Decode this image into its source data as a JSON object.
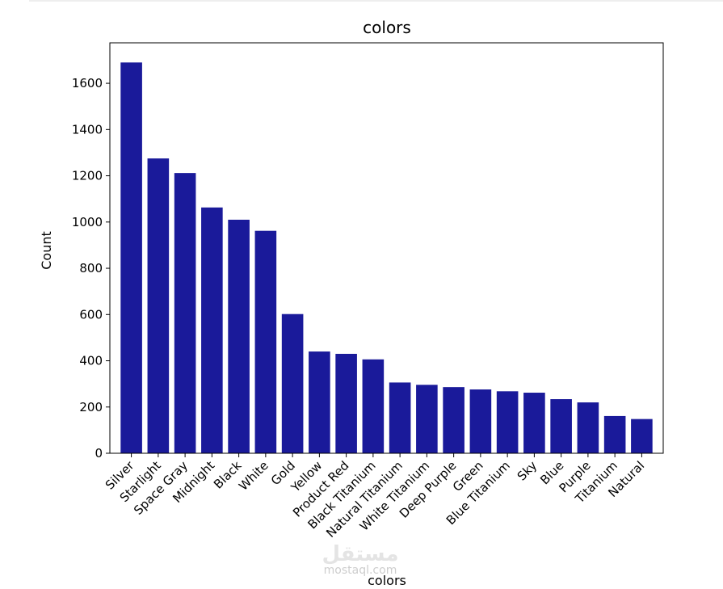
{
  "chart_data": {
    "type": "bar",
    "title": "colors",
    "xlabel": "colors",
    "ylabel": "Count",
    "categories": [
      "Silver",
      "Starlight",
      "Space Gray",
      "Midnight",
      "Black",
      "White",
      "Gold",
      "Yellow",
      "Product Red",
      "Black Titanium",
      "Natural Titanium",
      "White Titanium",
      "Deep Purple",
      "Green",
      "Blue Titanium",
      "Sky",
      "Blue",
      "Purple",
      "Titanium",
      "Natural"
    ],
    "values": [
      1690,
      1275,
      1212,
      1063,
      1010,
      962,
      602,
      440,
      430,
      406,
      306,
      296,
      286,
      276,
      268,
      262,
      234,
      220,
      161,
      148
    ],
    "yticks": [
      0,
      200,
      400,
      600,
      800,
      1000,
      1200,
      1400,
      1600
    ],
    "ylim": [
      0,
      1775
    ],
    "bar_color": "#1a1a9a",
    "grid": false,
    "legend": "none"
  },
  "watermark": {
    "text": "مستقل",
    "sub": "mostaql.com"
  }
}
